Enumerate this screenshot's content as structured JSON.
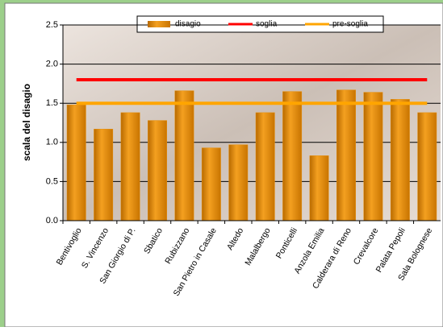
{
  "chart_data": {
    "type": "bar",
    "y_label": "scala del disagio",
    "categories": [
      "Bentivoglio",
      "S. Vincenzo",
      "San Giorgio di P.",
      "Sbatico",
      "Rubizzano",
      "San Pietro in Casale",
      "Altedo",
      "Malalbergo",
      "Ponticelli",
      "Anzola Emilia",
      "Calderara di Reno",
      "Crevalcore",
      "Palata Pepoli",
      "Sala Bolognese"
    ],
    "series": [
      {
        "name": "disagio",
        "type": "bar",
        "color": "#e8900c",
        "values": [
          1.48,
          1.17,
          1.38,
          1.28,
          1.66,
          0.93,
          0.97,
          1.38,
          1.65,
          0.83,
          1.67,
          1.64,
          1.55,
          1.38
        ]
      },
      {
        "name": "soglia",
        "type": "line",
        "color": "#ff0000",
        "values": [
          1.8,
          1.8,
          1.8,
          1.8,
          1.8,
          1.8,
          1.8,
          1.8,
          1.8,
          1.8,
          1.8,
          1.8,
          1.8,
          1.8
        ]
      },
      {
        "name": "pre-soglia",
        "type": "line",
        "color": "#ffa500",
        "values": [
          1.5,
          1.5,
          1.5,
          1.5,
          1.5,
          1.5,
          1.5,
          1.5,
          1.5,
          1.5,
          1.5,
          1.5,
          1.5,
          1.5
        ]
      }
    ],
    "ylim": [
      0,
      2.5
    ],
    "yticks": [
      {
        "value": 0,
        "label": "0.0"
      },
      0.5,
      {
        "value": 1,
        "label": "1.0"
      },
      1.5,
      {
        "value": 2,
        "label": "2.0"
      },
      2.5
    ],
    "grid": true
  }
}
